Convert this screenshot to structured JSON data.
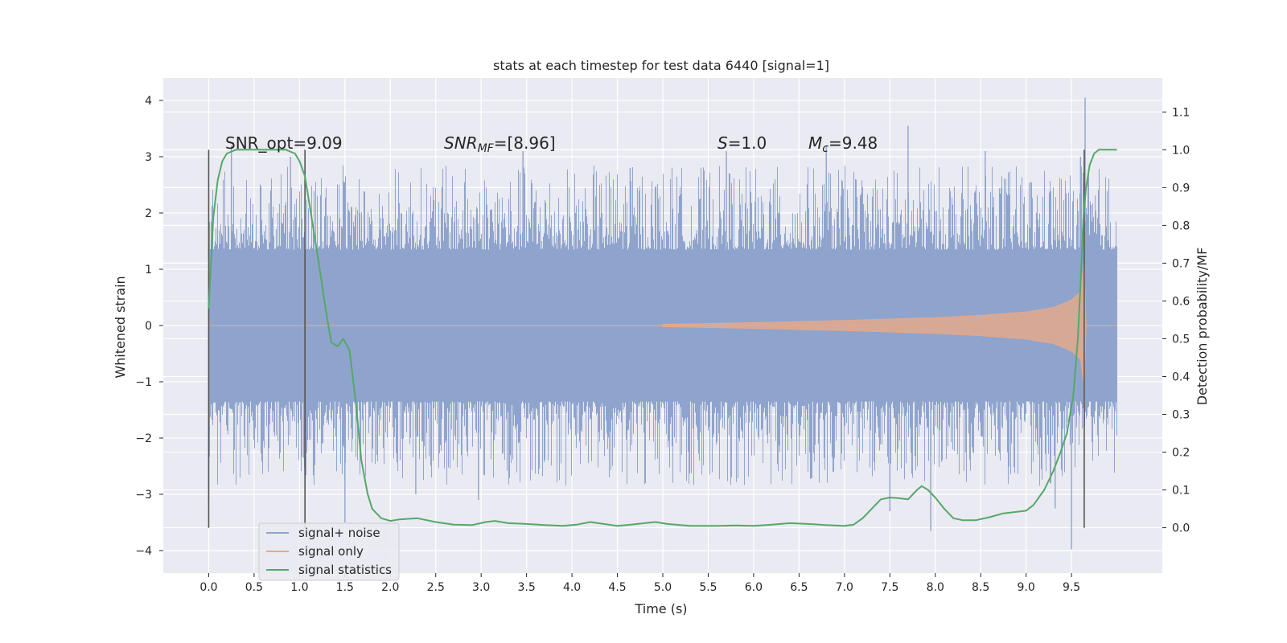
{
  "chart_data": {
    "type": "line",
    "title": "stats at each timestep for test data 6440 [signal=1]",
    "xlabel": "Time (s)",
    "ylabel": "Whitened strain",
    "ylabel_right": "Detection probability/MF",
    "xlim": [
      -0.5,
      10.5
    ],
    "ylim": [
      -4.4,
      4.4
    ],
    "ylim_right": [
      -0.12,
      1.19
    ],
    "x_ticks": [
      0.0,
      0.5,
      1.0,
      1.5,
      2.0,
      2.5,
      3.0,
      3.5,
      4.0,
      4.5,
      5.0,
      5.5,
      6.0,
      6.5,
      7.0,
      7.5,
      8.0,
      8.5,
      9.0,
      9.5
    ],
    "x_tick_labels": [
      "0.0",
      "0.5",
      "1.0",
      "1.5",
      "2.0",
      "2.5",
      "3.0",
      "3.5",
      "4.0",
      "4.5",
      "5.0",
      "5.5",
      "6.0",
      "6.5",
      "7.0",
      "7.5",
      "8.0",
      "8.5",
      "9.0",
      "9.5"
    ],
    "y_ticks": [
      4,
      3,
      2,
      1,
      0,
      -1,
      -2,
      -3,
      -4
    ],
    "y_tick_labels": [
      "4",
      "3",
      "2",
      "1",
      "0",
      "−1",
      "−2",
      "−3",
      "−4"
    ],
    "y_ticks_right": [
      1.1,
      1.0,
      0.9,
      0.8,
      0.7,
      0.6,
      0.5,
      0.4,
      0.3,
      0.2,
      0.1,
      0.0
    ],
    "y_tick_labels_right": [
      "1.1",
      "1.0",
      "0.9",
      "0.8",
      "0.7",
      "0.6",
      "0.5",
      "0.4",
      "0.3",
      "0.2",
      "0.1",
      "0.0"
    ],
    "grid": true,
    "legend_position": "bottom-left",
    "annotations": {
      "snr_opt": "SNR_opt=9.09",
      "snr_mf_label": "SNR",
      "snr_mf_sub": "MF",
      "snr_mf_value": "=[8.96]",
      "s_label": "S",
      "s_value": "=1.0",
      "mc_label": "M",
      "mc_sub": "c",
      "mc_value": "=9.48"
    },
    "vertical_markers": [
      0.0,
      1.06,
      9.64
    ],
    "noise_envelope": {
      "t": [
        0.0,
        10.0
      ],
      "core_amplitude": 1.3,
      "max": 4.05,
      "min": -3.98
    },
    "series": [
      {
        "name": "signal+ noise",
        "color": "#8fa4cc",
        "axis": "left",
        "peaks_t": [
          0.0,
          0.25,
          0.9,
          1.5,
          2.28,
          2.97,
          3.46,
          4.64,
          5.7,
          6.8,
          7.5,
          7.7,
          7.95,
          8.55,
          9.32,
          9.5,
          9.6,
          9.65
        ],
        "peaks_v": [
          -3.1,
          3.2,
          3.0,
          -3.5,
          -3.0,
          -3.1,
          3.1,
          2.8,
          3.1,
          3.2,
          -3.3,
          3.55,
          -3.65,
          3.1,
          -3.25,
          -3.98,
          3.0,
          4.05
        ]
      },
      {
        "name": "signal only",
        "color": "#e3a98c",
        "axis": "left",
        "chirp_t": [
          5.0,
          6.0,
          7.0,
          8.0,
          8.5,
          9.0,
          9.3,
          9.5,
          9.6,
          9.64,
          9.66
        ],
        "chirp_amp": [
          0.02,
          0.05,
          0.09,
          0.14,
          0.18,
          0.24,
          0.32,
          0.45,
          0.6,
          1.1,
          0.0
        ]
      },
      {
        "name": "signal statistics",
        "color": "#55a868",
        "axis": "right",
        "x": [
          0.0,
          0.05,
          0.1,
          0.15,
          0.2,
          0.3,
          0.45,
          0.6,
          0.75,
          0.85,
          0.95,
          1.0,
          1.06,
          1.12,
          1.2,
          1.3,
          1.35,
          1.42,
          1.48,
          1.55,
          1.62,
          1.68,
          1.75,
          1.8,
          1.9,
          2.0,
          2.1,
          2.3,
          2.5,
          2.7,
          2.9,
          3.05,
          3.15,
          3.3,
          3.5,
          3.7,
          3.9,
          4.05,
          4.2,
          4.35,
          4.5,
          4.65,
          4.8,
          4.92,
          5.05,
          5.3,
          5.6,
          5.8,
          6.0,
          6.2,
          6.4,
          6.6,
          6.8,
          7.0,
          7.1,
          7.2,
          7.3,
          7.4,
          7.5,
          7.6,
          7.7,
          7.8,
          7.85,
          7.92,
          8.0,
          8.1,
          8.2,
          8.3,
          8.45,
          8.6,
          8.75,
          8.9,
          9.0,
          9.08,
          9.2,
          9.3,
          9.38,
          9.45,
          9.52,
          9.57,
          9.6,
          9.63,
          9.66,
          9.7,
          9.75,
          9.8,
          9.86,
          9.92,
          10.0
        ],
        "y": [
          0.58,
          0.82,
          0.92,
          0.97,
          0.99,
          1.0,
          1.0,
          1.0,
          1.0,
          1.0,
          0.99,
          0.97,
          0.93,
          0.84,
          0.72,
          0.56,
          0.49,
          0.48,
          0.5,
          0.47,
          0.33,
          0.18,
          0.09,
          0.05,
          0.025,
          0.018,
          0.022,
          0.025,
          0.015,
          0.008,
          0.007,
          0.015,
          0.018,
          0.012,
          0.01,
          0.007,
          0.005,
          0.008,
          0.015,
          0.01,
          0.005,
          0.008,
          0.012,
          0.015,
          0.01,
          0.005,
          0.005,
          0.006,
          0.005,
          0.008,
          0.012,
          0.01,
          0.007,
          0.005,
          0.008,
          0.025,
          0.05,
          0.075,
          0.08,
          0.078,
          0.075,
          0.1,
          0.11,
          0.1,
          0.08,
          0.05,
          0.025,
          0.02,
          0.02,
          0.028,
          0.038,
          0.042,
          0.045,
          0.06,
          0.1,
          0.15,
          0.2,
          0.25,
          0.35,
          0.5,
          0.65,
          0.82,
          0.9,
          0.96,
          0.99,
          1.0,
          1.0,
          1.0,
          1.0
        ]
      }
    ]
  }
}
